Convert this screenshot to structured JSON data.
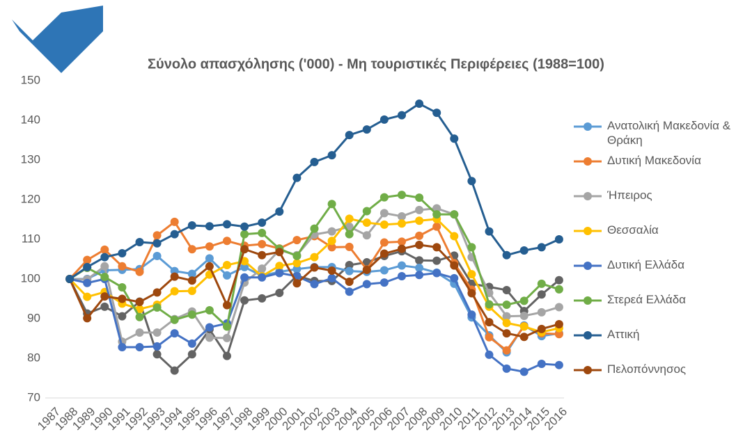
{
  "chart_data": {
    "type": "line",
    "title": "Σύνολο απασχόλησης ('000) - Μη τουριστικές Περιφέρειες (1988=100)",
    "categories": [
      "1987",
      "1988",
      "1989",
      "1990",
      "1991",
      "1992",
      "1993",
      "1994",
      "1995",
      "1996",
      "1997",
      "1998",
      "1999",
      "2000",
      "2001",
      "2002",
      "2003",
      "2004",
      "2005",
      "2006",
      "2007",
      "2008",
      "2009",
      "2010",
      "2011",
      "2012",
      "2013",
      "2014",
      "2015",
      "2016"
    ],
    "ylim": [
      70,
      150
    ],
    "yticks": [
      70,
      80,
      90,
      100,
      110,
      120,
      130,
      140,
      150
    ],
    "grid": false,
    "series": [
      {
        "name": "Ανατολική Μακεδονία & Θράκη",
        "color": "#5b9bd5",
        "values": [
          null,
          100,
          100,
          102.2,
          102.3,
          102.5,
          105.8,
          102,
          101.3,
          105.2,
          100.9,
          103,
          100.8,
          101.8,
          102.5,
          103,
          103,
          102,
          101.8,
          102.2,
          103.4,
          102.8,
          101.6,
          98.8,
          90.3,
          85.8,
          81.5,
          88.3,
          85.6,
          86.3
        ]
      },
      {
        "name": "Δυτική Μακεδονία",
        "color": "#ed7d31",
        "values": [
          null,
          100,
          104.8,
          107.4,
          103.2,
          101.8,
          111,
          114.4,
          107.5,
          108.2,
          109.6,
          108.4,
          108.8,
          107.7,
          109.8,
          110.8,
          108,
          108.1,
          102.4,
          109.2,
          109.4,
          110.9,
          113.2,
          104,
          97.3,
          85.3,
          82,
          88.1,
          86.3,
          86.1
        ]
      },
      {
        "name": "Ήπειρος",
        "color": "#a5a5a5",
        "values": [
          null,
          100,
          99.9,
          103.2,
          84.2,
          86.5,
          86.5,
          89.9,
          91.8,
          85.2,
          85.1,
          99.1,
          102.6,
          107.3,
          106,
          111.2,
          112,
          113.2,
          111,
          116.6,
          115.8,
          117.4,
          117.8,
          116.3,
          105.5,
          96.5,
          90.6,
          90.7,
          91.6,
          92.9
        ]
      },
      {
        "name": "Θεσσαλία",
        "color": "#ffc000",
        "values": [
          null,
          100,
          95.5,
          96.7,
          93.8,
          92.4,
          93.5,
          96.9,
          97,
          101.1,
          103.5,
          104.5,
          100.7,
          103.3,
          104,
          105.5,
          109.6,
          115.2,
          114.2,
          113.7,
          114,
          114.7,
          115.1,
          110.8,
          101.2,
          93,
          88.9,
          88,
          86.6,
          87.6
        ]
      },
      {
        "name": "Δυτική Ελλάδα",
        "color": "#4472c4",
        "values": [
          null,
          100,
          99,
          100,
          82.8,
          82.8,
          83,
          86.3,
          83.7,
          87.8,
          88.8,
          100.4,
          100.4,
          101.5,
          100.7,
          98.7,
          100.2,
          96.8,
          98.7,
          99.1,
          100.7,
          101,
          101.5,
          100.2,
          91,
          80.9,
          77.4,
          76.6,
          78.6,
          78.3
        ]
      },
      {
        "name": "Στερεά Ελλάδα",
        "color": "#70ad47",
        "values": [
          null,
          100,
          102.8,
          100.5,
          97.9,
          90.4,
          92.8,
          89.7,
          91,
          92.1,
          88,
          111.3,
          111.6,
          107.6,
          105.8,
          112.7,
          118.9,
          111.3,
          117.1,
          120.6,
          121.2,
          120.5,
          116.3,
          116.3,
          108,
          93.6,
          93.5,
          94.5,
          98.8,
          97.4
        ]
      },
      {
        "name": "Αττική",
        "color": "#255e91",
        "values": [
          null,
          100,
          103,
          105.5,
          106.5,
          109.3,
          109,
          111.3,
          113.5,
          113.3,
          113.8,
          113.2,
          114.2,
          117,
          125.5,
          129.5,
          131.2,
          136.3,
          137.7,
          140.2,
          141.3,
          144.2,
          141.9,
          135.4,
          124.7,
          112,
          106,
          107.2,
          108,
          110
        ]
      },
      {
        "name": "Πελοπόννησος",
        "color": "#9e480e",
        "values": [
          null,
          100,
          90.1,
          95.6,
          95,
          94.2,
          96.6,
          100.6,
          99.6,
          103.2,
          93.4,
          107.5,
          106,
          106.8,
          98.9,
          102.9,
          102.1,
          99.3,
          102.3,
          106.4,
          107.6,
          108.6,
          108,
          103.4,
          96.4,
          89.1,
          86.3,
          85.4,
          87.4,
          88.6
        ]
      },
      {
        "color": "#636363",
        "values": [
          null,
          100,
          91.3,
          93,
          90.6,
          94.3,
          81,
          76.9,
          81,
          87.3,
          80.6,
          94.6,
          95.1,
          96.5,
          100.8,
          99.5,
          99.5,
          103.5,
          104.2,
          105.8,
          107,
          104.7,
          104.6,
          105.9,
          98.8,
          98,
          97.2,
          91.9,
          96.1,
          99.7
        ]
      }
    ]
  }
}
